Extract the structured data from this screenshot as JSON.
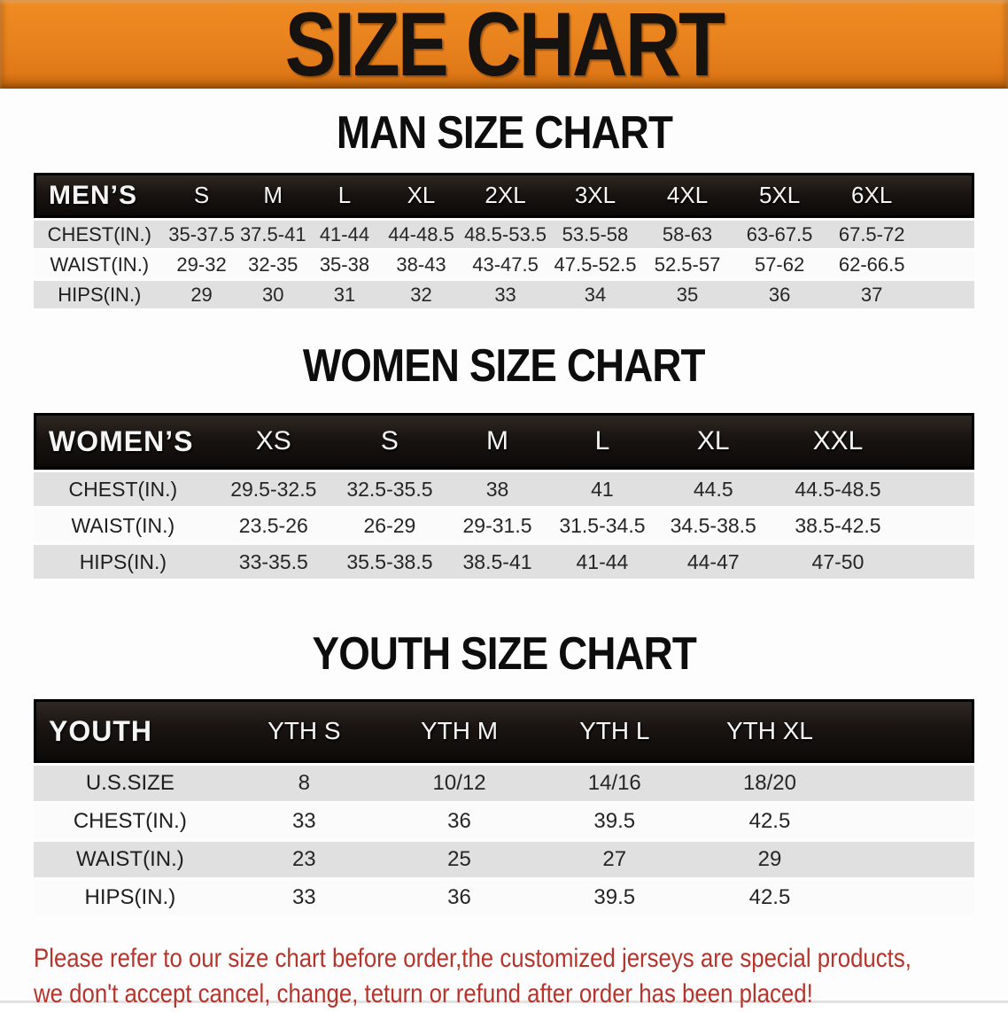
{
  "banner": {
    "title": "SIZE CHART",
    "bg_color": "#E8821E",
    "text_color": "#161210"
  },
  "colors": {
    "table_header_bg": "#171310",
    "row_gray": "#E0E0E0",
    "row_white": "#FBFBFB",
    "note_red": "#B5342B"
  },
  "sections": [
    {
      "heading": "MAN SIZE CHART",
      "table": {
        "header_label": "MEN’S",
        "columns": [
          "S",
          "M",
          "L",
          "XL",
          "2XL",
          "3XL",
          "4XL",
          "5XL",
          "6XL"
        ],
        "rows": [
          {
            "label": "CHEST(IN.)",
            "values": [
              "35-37.5",
              "37.5-41",
              "41-44",
              "44-48.5",
              "48.5-53.5",
              "53.5-58",
              "58-63",
              "63-67.5",
              "67.5-72"
            ]
          },
          {
            "label": "WAIST(IN.)",
            "values": [
              "29-32",
              "32-35",
              "35-38",
              "38-43",
              "43-47.5",
              "47.5-52.5",
              "52.5-57",
              "57-62",
              "62-66.5"
            ]
          },
          {
            "label": "HIPS(IN.)",
            "values": [
              "29",
              "30",
              "31",
              "32",
              "33",
              "34",
              "35",
              "36",
              "37"
            ]
          }
        ]
      }
    },
    {
      "heading": "WOMEN SIZE CHART",
      "table": {
        "header_label": "WOMEN’S",
        "columns": [
          "XS",
          "S",
          "M",
          "L",
          "XL",
          "XXL"
        ],
        "rows": [
          {
            "label": "CHEST(IN.)",
            "values": [
              "29.5-32.5",
              "32.5-35.5",
              "38",
              "41",
              "44.5",
              "44.5-48.5"
            ]
          },
          {
            "label": "WAIST(IN.)",
            "values": [
              "23.5-26",
              "26-29",
              "29-31.5",
              "31.5-34.5",
              "34.5-38.5",
              "38.5-42.5"
            ]
          },
          {
            "label": "HIPS(IN.)",
            "values": [
              "33-35.5",
              "35.5-38.5",
              "38.5-41",
              "41-44",
              "44-47",
              "47-50"
            ]
          }
        ]
      }
    },
    {
      "heading": "YOUTH SIZE CHART",
      "table": {
        "header_label": "YOUTH",
        "columns": [
          "YTH S",
          "YTH M",
          "YTH L",
          "YTH XL"
        ],
        "rows": [
          {
            "label": "U.S.SIZE",
            "values": [
              "8",
              "10/12",
              "14/16",
              "18/20"
            ]
          },
          {
            "label": "CHEST(IN.)",
            "values": [
              "33",
              "36",
              "39.5",
              "42.5"
            ]
          },
          {
            "label": "WAIST(IN.)",
            "values": [
              "23",
              "25",
              "27",
              "29"
            ]
          },
          {
            "label": "HIPS(IN.)",
            "values": [
              "33",
              "36",
              "39.5",
              "42.5"
            ]
          }
        ]
      }
    }
  ],
  "footer_note": {
    "line1": "Please refer to our size chart before order,the customized jerseys are special products,",
    "line2": "we don't accept cancel, change, teturn or refund after order has been placed!"
  }
}
